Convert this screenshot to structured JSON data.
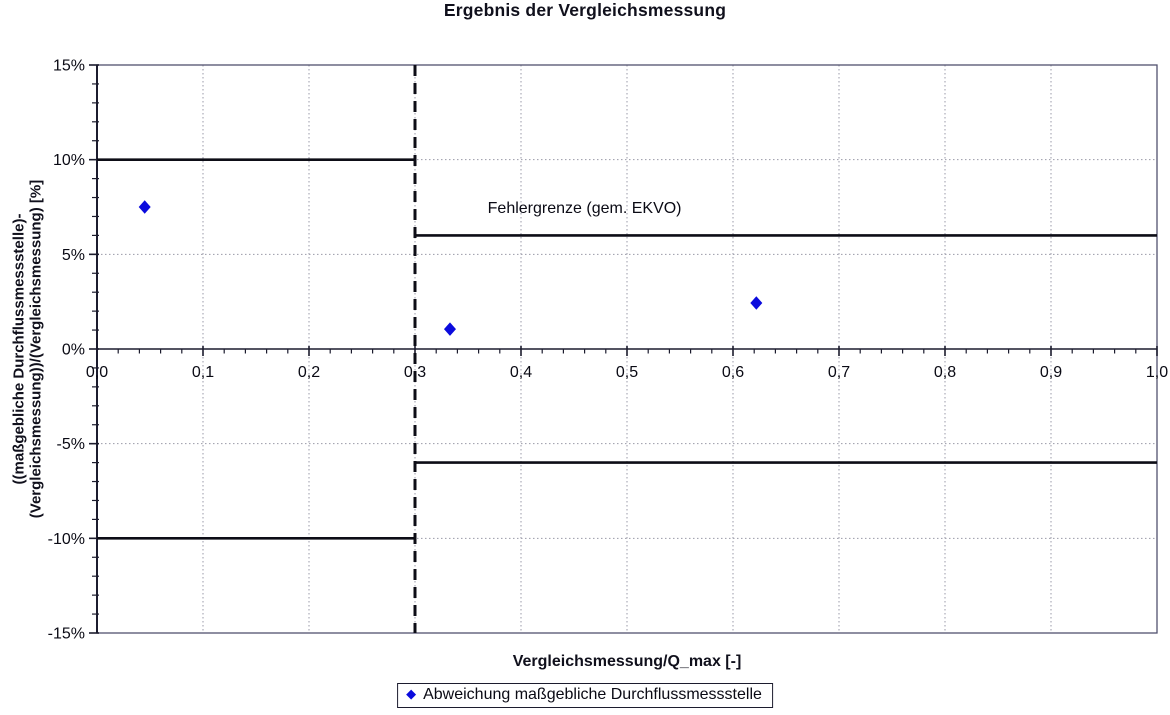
{
  "chart_data": {
    "type": "scatter",
    "title": "Ergebnis der Vergleichsmessung",
    "xlabel": "Vergleichsmessung/Q_max [-]",
    "ylabel_lines": [
      "((maßgebliche Durchflussmessstelle)-",
      "(Vergleichsmessung))/(Vergleichsmessung) [%]"
    ],
    "xlim": [
      0.0,
      1.0
    ],
    "ylim": [
      -15,
      15
    ],
    "x_ticks": {
      "values": [
        0.0,
        0.1,
        0.2,
        0.3,
        0.4,
        0.5,
        0.6,
        0.7,
        0.8,
        0.9,
        1.0
      ],
      "labels": [
        "0,0",
        "0,1",
        "0,2",
        "0,3",
        "0,4",
        "0,5",
        "0,6",
        "0,7",
        "0,8",
        "0,9",
        "1,0"
      ]
    },
    "y_ticks": {
      "values": [
        15,
        10,
        5,
        0,
        -5,
        -10,
        -15
      ],
      "labels": [
        "15%",
        "10%",
        "5%",
        "0%",
        "-5%",
        "-10%",
        "-15%"
      ]
    },
    "x_minor_step": 0.02,
    "y_minor_step": 1,
    "grid": {
      "style": "dotted",
      "color": "#9a9aa8"
    },
    "series": [
      {
        "name": "Abweichung maßgebliche Durchflussmessstelle",
        "marker": "diamond",
        "color": "#0b0bdd",
        "points": [
          {
            "x": 0.045,
            "y": 7.5
          },
          {
            "x": 0.333,
            "y": 1.05
          },
          {
            "x": 0.622,
            "y": 2.43
          }
        ]
      }
    ],
    "limit_lines": {
      "color": "#0d0d16",
      "segments": [
        {
          "y": 10,
          "x1": 0.0,
          "x2": 0.3
        },
        {
          "y": -10,
          "x1": 0.0,
          "x2": 0.3
        },
        {
          "y": 6,
          "x1": 0.3,
          "x2": 1.0
        },
        {
          "y": -6,
          "x1": 0.3,
          "x2": 1.0
        }
      ]
    },
    "threshold_line": {
      "x": 0.3,
      "style": "dashed",
      "color": "#0d0d16"
    },
    "annotation": {
      "text": "Fehlergrenze (gem. EKVO)",
      "x": 0.46,
      "y": 7.45
    },
    "legend": {
      "position": "bottom-center",
      "entries": [
        {
          "marker_glyph": "◆",
          "color": "#0b0bdd",
          "label": "Abweichung maßgebliche Durchflussmessstelle"
        }
      ]
    }
  },
  "colors": {
    "axis": "#1c1c2e",
    "border": "#50506e",
    "axis_text": "#0a0a14",
    "marker_blue": "#0b0bdd",
    "limit_line": "#0d0d16",
    "grid": "#9a9aa8"
  }
}
